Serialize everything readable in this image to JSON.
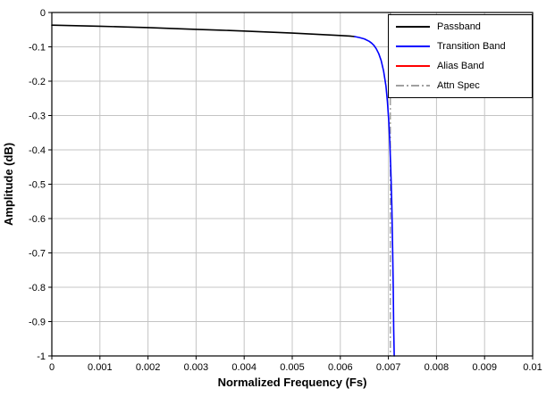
{
  "chart_data": {
    "type": "line",
    "title": "",
    "xlabel": "Normalized Frequency (Fs)",
    "ylabel": "Amplitude (dB)",
    "xlim": [
      0,
      0.01
    ],
    "ylim": [
      -1,
      0
    ],
    "grid": true,
    "grid_color": "#c4c4c4",
    "legend_position": "top-right",
    "x_ticks": [
      0,
      0.001,
      0.002,
      0.003,
      0.004,
      0.005,
      0.006,
      0.007,
      0.008,
      0.009,
      0.01
    ],
    "x_tick_labels": [
      "0",
      "0.001",
      "0.002",
      "0.003",
      "0.004",
      "0.005",
      "0.006",
      "0.007",
      "0.008",
      "0.009",
      "0.01"
    ],
    "y_ticks": [
      0,
      -0.1,
      -0.2,
      -0.3,
      -0.4,
      -0.5,
      -0.6,
      -0.7,
      -0.8,
      -0.9,
      -1
    ],
    "y_tick_labels": [
      "0",
      "-0.1",
      "-0.2",
      "-0.3",
      "-0.4",
      "-0.5",
      "-0.6",
      "-0.7",
      "-0.8",
      "-0.9",
      "-1"
    ],
    "series": [
      {
        "name": "Passband",
        "color": "#000000",
        "line_style": "solid",
        "points": [
          [
            0.0,
            -0.037
          ],
          [
            0.0005,
            -0.0385
          ],
          [
            0.001,
            -0.04
          ],
          [
            0.0015,
            -0.042
          ],
          [
            0.002,
            -0.044
          ],
          [
            0.0025,
            -0.0465
          ],
          [
            0.003,
            -0.049
          ],
          [
            0.0035,
            -0.0515
          ],
          [
            0.004,
            -0.054
          ],
          [
            0.0045,
            -0.057
          ],
          [
            0.005,
            -0.06
          ],
          [
            0.0055,
            -0.0635
          ],
          [
            0.006,
            -0.067
          ],
          [
            0.0062,
            -0.0685
          ],
          [
            0.0063,
            -0.07
          ]
        ]
      },
      {
        "name": "Transition Band",
        "color": "#0000ff",
        "line_style": "solid",
        "points": [
          [
            0.0063,
            -0.07
          ],
          [
            0.0064,
            -0.073
          ],
          [
            0.0065,
            -0.077
          ],
          [
            0.0066,
            -0.084
          ],
          [
            0.00665,
            -0.089
          ],
          [
            0.0067,
            -0.096
          ],
          [
            0.00675,
            -0.106
          ],
          [
            0.0068,
            -0.12
          ],
          [
            0.00685,
            -0.14
          ],
          [
            0.0069,
            -0.17
          ],
          [
            0.00695,
            -0.215
          ],
          [
            0.00698,
            -0.26
          ],
          [
            0.00701,
            -0.32
          ],
          [
            0.00703,
            -0.38
          ],
          [
            0.00705,
            -0.46
          ],
          [
            0.00707,
            -0.56
          ],
          [
            0.00709,
            -0.7
          ],
          [
            0.0071,
            -0.8
          ],
          [
            0.00711,
            -0.92
          ],
          [
            0.00712,
            -1.0
          ]
        ]
      },
      {
        "name": "Alias Band",
        "color": "#ff0000",
        "line_style": "solid",
        "points": []
      },
      {
        "name": "Attn Spec",
        "color": "#a0a0a0",
        "line_style": "dash-dot",
        "type": "vline",
        "x": 0.00704,
        "points": []
      }
    ]
  }
}
